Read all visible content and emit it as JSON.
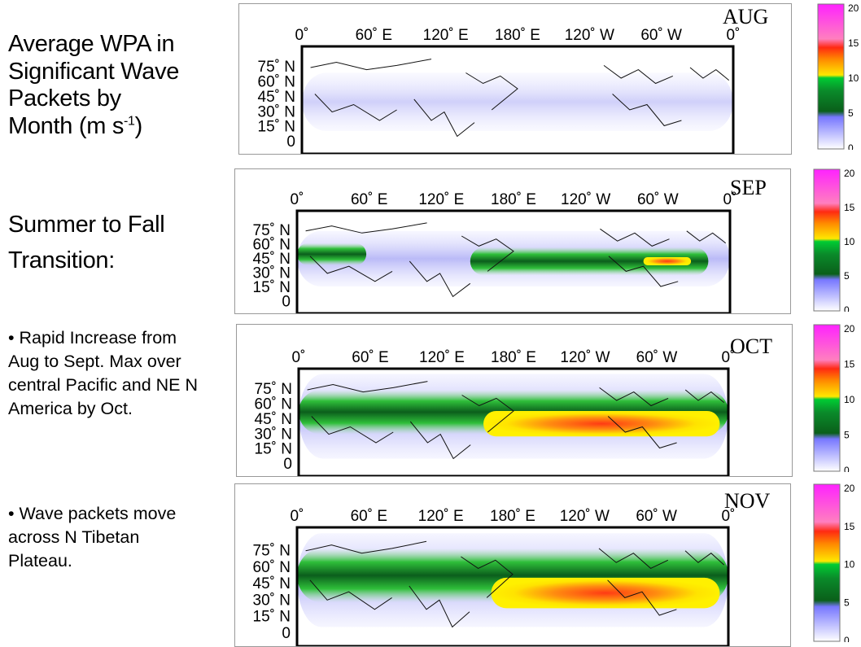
{
  "title_line1": "Average WPA in",
  "title_line2": "Significant Wave",
  "title_line3": "Packets by",
  "title_line4_prefix": "Month (m s",
  "title_line4_sup": "-1",
  "title_line4_suffix": ")",
  "subhead_line1": "Summer to Fall",
  "subhead_line2": "Transition:",
  "bullet1": "• Rapid Increase from Aug to Sept. Max over central Pacific and NE N America by Oct.",
  "bullet2": "• Wave packets move across N Tibetan Plateau.",
  "lon_ticks": [
    "0˚",
    "60˚ E",
    "120˚ E",
    "180˚ E",
    "120˚ W",
    "60˚ W",
    "0˚"
  ],
  "lat_ticks": [
    "75˚ N",
    "60˚ N",
    "45˚ N",
    "30˚ N",
    "15˚ N",
    "0"
  ],
  "colorbar_ticks": [
    "20",
    "15",
    "10",
    "5",
    "0"
  ],
  "colorbar_colors": [
    "#ff33ff",
    "#ff7fbf",
    "#ff4422",
    "#ffe700",
    "#00cc33",
    "#0a5f1a",
    "#7777ff",
    "#ffffff"
  ],
  "panels": [
    {
      "label": "AUG"
    },
    {
      "label": "SEP"
    },
    {
      "label": "OCT"
    },
    {
      "label": "NOV"
    }
  ]
}
